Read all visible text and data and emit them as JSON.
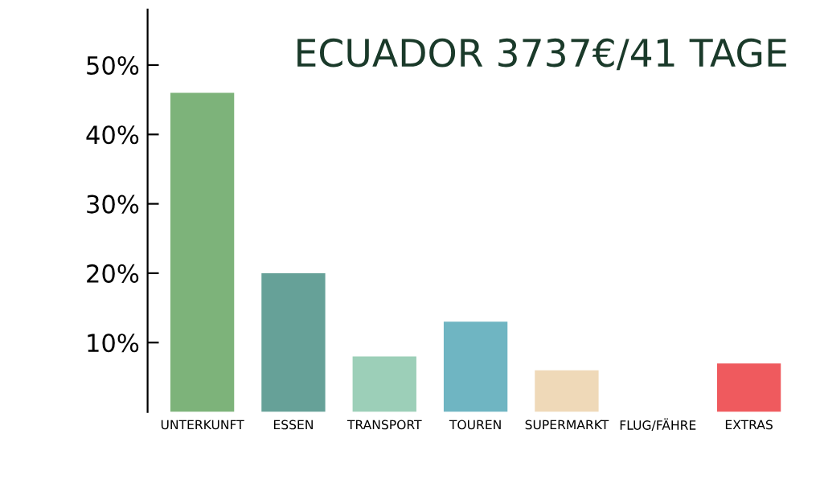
{
  "chart_data": {
    "type": "bar",
    "title": "ECUADOR 3737€/41 TAGE",
    "categories": [
      "UNTERKUNFT",
      "ESSEN",
      "TRANSPORT",
      "TOUREN",
      "SUPERMARKT",
      "FLUG/FÄHRE",
      "EXTRAS"
    ],
    "values": [
      46,
      20,
      8,
      13,
      6,
      0,
      7
    ],
    "colors": [
      "#7db37a",
      "#66a198",
      "#9ccfb8",
      "#6fb5c2",
      "#efd9b8",
      "#cccccc",
      "#ef5a5e"
    ],
    "ylim": [
      0,
      58
    ],
    "yticks": [
      {
        "value": 10,
        "label": "10%"
      },
      {
        "value": 20,
        "label": "20%"
      },
      {
        "value": 30,
        "label": "30%"
      },
      {
        "value": 40,
        "label": "40%"
      },
      {
        "value": 50,
        "label": "50%"
      }
    ],
    "grid": false,
    "legend": false
  }
}
